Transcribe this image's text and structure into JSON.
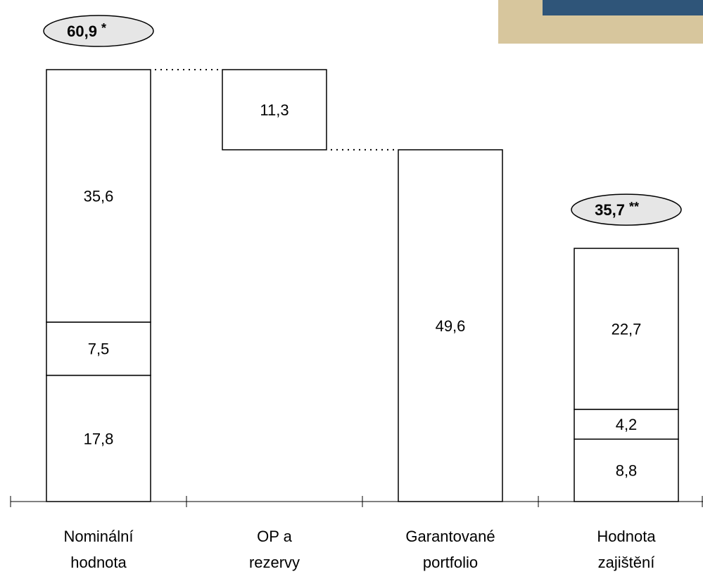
{
  "chart_data": {
    "type": "bar",
    "subtype": "waterfall-stacked",
    "categories": [
      "Nominální hodnota",
      "OP a rezervy",
      "Garantované portfolio",
      "Hodnota zajištění"
    ],
    "category_lines": [
      [
        "Nominální",
        "hodnota"
      ],
      [
        "OP a",
        "rezervy"
      ],
      [
        "Garantované",
        "portfolio"
      ],
      [
        "Hodnota",
        "zajištění"
      ]
    ],
    "bars": [
      {
        "category": "Nominální hodnota",
        "base": 0,
        "segments": [
          {
            "value": 17.8,
            "label": "17,8"
          },
          {
            "value": 7.5,
            "label": "7,5"
          },
          {
            "value": 35.6,
            "label": "35,6"
          }
        ]
      },
      {
        "category": "OP a rezervy",
        "base": 49.6,
        "segments": [
          {
            "value": 11.3,
            "label": "11,3"
          }
        ]
      },
      {
        "category": "Garantované portfolio",
        "base": 0,
        "segments": [
          {
            "value": 49.6,
            "label": "49,6"
          }
        ]
      },
      {
        "category": "Hodnota zajištění",
        "base": 0,
        "segments": [
          {
            "value": 8.8,
            "label": "8,8"
          },
          {
            "value": 4.2,
            "label": "4,2"
          },
          {
            "value": 22.7,
            "label": "22,7"
          }
        ]
      }
    ],
    "totals": [
      {
        "bar_index": 0,
        "value": "60,9",
        "note": "*"
      },
      {
        "bar_index": 3,
        "value": "35,7",
        "note": "**"
      }
    ],
    "connectors": [
      {
        "from_bar": 0,
        "to_bar": 1,
        "level": 60.9
      },
      {
        "from_bar": 1,
        "to_bar": 2,
        "level": 49.6
      }
    ],
    "ylim": [
      0,
      60.9
    ],
    "grid": false,
    "legend": "none",
    "colors": {
      "bar_fill": "#ffffff",
      "stroke": "#000000",
      "total_fill": "#e6e6e6",
      "deco_tan": "#d7c69d",
      "deco_navy": "#2f5579"
    }
  }
}
